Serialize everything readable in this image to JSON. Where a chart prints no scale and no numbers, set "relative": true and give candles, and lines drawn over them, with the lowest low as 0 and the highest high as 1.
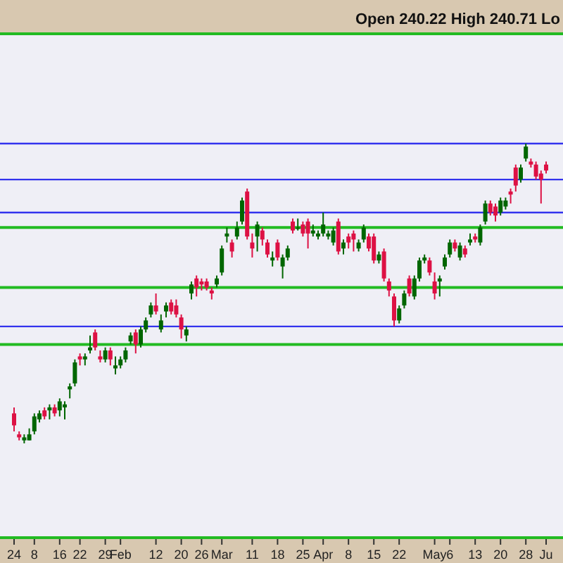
{
  "chart_data": {
    "type": "candlestick",
    "relative": true,
    "annotations": [
      "Open 240.22 High 240.71 Lo"
    ],
    "categories": [
      "24",
      null,
      null,
      null,
      "8",
      null,
      null,
      null,
      null,
      "16",
      null,
      null,
      null,
      "22",
      null,
      null,
      null,
      null,
      "29",
      null,
      null,
      "Feb",
      null,
      null,
      null,
      null,
      null,
      null,
      "12",
      null,
      null,
      null,
      null,
      "20",
      null,
      null,
      null,
      "26",
      null,
      null,
      null,
      "Mar",
      null,
      null,
      null,
      null,
      null,
      "11",
      null,
      null,
      null,
      null,
      "18",
      null,
      null,
      null,
      null,
      "25",
      null,
      null,
      null,
      "Apr",
      null,
      null,
      null,
      null,
      "8",
      null,
      null,
      null,
      null,
      "15",
      null,
      null,
      null,
      null,
      "22",
      null,
      null,
      null,
      null,
      null,
      null,
      "May",
      null,
      null,
      "6",
      null,
      null,
      null,
      null,
      "13",
      null,
      null,
      null,
      null,
      "20",
      null,
      null,
      null,
      null,
      "28",
      null,
      null,
      null,
      "Ju"
    ],
    "ohlc": [
      [
        0.1,
        0.12,
        0.04,
        0.06
      ],
      [
        0.03,
        0.04,
        0.01,
        0.02
      ],
      [
        0.01,
        0.03,
        0,
        0.02
      ],
      [
        0.01,
        0.05,
        0.01,
        0.03
      ],
      [
        0.04,
        0.1,
        0.03,
        0.09
      ],
      [
        0.08,
        0.11,
        0.07,
        0.1
      ],
      [
        0.11,
        0.12,
        0.08,
        0.09
      ],
      [
        0.11,
        0.13,
        0.08,
        0.12
      ],
      [
        0.12,
        0.13,
        0.09,
        0.1
      ],
      [
        0.11,
        0.15,
        0.09,
        0.14
      ],
      [
        0.12,
        0.14,
        0.08,
        0.13
      ],
      [
        0.18,
        0.2,
        0.15,
        0.19
      ],
      [
        0.2,
        0.28,
        0.19,
        0.27
      ],
      [
        0.29,
        0.3,
        0.26,
        0.28
      ],
      [
        0.28,
        0.3,
        0.26,
        0.29
      ],
      [
        0.31,
        0.36,
        0.3,
        0.32
      ],
      [
        0.37,
        0.38,
        0.31,
        0.32
      ],
      [
        0.29,
        0.31,
        0.27,
        0.28
      ],
      [
        0.28,
        0.32,
        0.27,
        0.31
      ],
      [
        0.31,
        0.32,
        0.26,
        0.28
      ],
      [
        0.25,
        0.29,
        0.23,
        0.26
      ],
      [
        0.26,
        0.29,
        0.25,
        0.28
      ],
      [
        0.28,
        0.32,
        0.27,
        0.31
      ],
      [
        0.34,
        0.37,
        0.33,
        0.36
      ],
      [
        0.37,
        0.38,
        0.3,
        0.33
      ],
      [
        0.33,
        0.39,
        0.32,
        0.38
      ],
      [
        0.38,
        0.42,
        0.37,
        0.41
      ],
      [
        0.43,
        0.47,
        0.42,
        0.46
      ],
      [
        0.46,
        0.5,
        0.43,
        0.44
      ],
      [
        0.38,
        0.43,
        0.37,
        0.41
      ],
      [
        0.44,
        0.47,
        0.42,
        0.46
      ],
      [
        0.47,
        0.48,
        0.43,
        0.44
      ],
      [
        0.46,
        0.48,
        0.42,
        0.43
      ],
      [
        0.42,
        0.43,
        0.35,
        0.38
      ],
      [
        0.36,
        0.39,
        0.34,
        0.38
      ],
      [
        0.5,
        0.54,
        0.48,
        0.53
      ],
      [
        0.55,
        0.56,
        0.49,
        0.52
      ],
      [
        0.54,
        0.55,
        0.51,
        0.53
      ],
      [
        0.54,
        0.55,
        0.51,
        0.52
      ],
      [
        0.51,
        0.52,
        0.48,
        0.5
      ],
      [
        0.53,
        0.56,
        0.52,
        0.55
      ],
      [
        0.57,
        0.66,
        0.56,
        0.65
      ],
      [
        0.69,
        0.72,
        0.67,
        0.7
      ],
      [
        0.67,
        0.68,
        0.62,
        0.64
      ],
      [
        0.69,
        0.74,
        0.68,
        0.72
      ],
      [
        0.74,
        0.82,
        0.73,
        0.81
      ],
      [
        0.84,
        0.85,
        0.68,
        0.69
      ],
      [
        0.67,
        0.7,
        0.62,
        0.65
      ],
      [
        0.69,
        0.74,
        0.64,
        0.73
      ],
      [
        0.71,
        0.72,
        0.66,
        0.68
      ],
      [
        0.67,
        0.68,
        0.62,
        0.63
      ],
      [
        0.61,
        0.64,
        0.59,
        0.62
      ],
      [
        0.67,
        0.68,
        0.61,
        0.62
      ],
      [
        0.59,
        0.63,
        0.55,
        0.62
      ],
      [
        0.62,
        0.66,
        0.61,
        0.65
      ],
      [
        0.74,
        0.75,
        0.7,
        0.71
      ],
      [
        0.72,
        0.75,
        0.71,
        0.72
      ],
      [
        0.73,
        0.74,
        0.69,
        0.7
      ],
      [
        0.74,
        0.75,
        0.65,
        0.7
      ],
      [
        0.7,
        0.73,
        0.69,
        0.71
      ],
      [
        0.69,
        0.71,
        0.68,
        0.7
      ],
      [
        0.7,
        0.77,
        0.69,
        0.73
      ],
      [
        0.69,
        0.71,
        0.68,
        0.7
      ],
      [
        0.67,
        0.72,
        0.66,
        0.71
      ],
      [
        0.74,
        0.75,
        0.63,
        0.64
      ],
      [
        0.65,
        0.68,
        0.63,
        0.67
      ],
      [
        0.69,
        0.7,
        0.65,
        0.67
      ],
      [
        0.7,
        0.71,
        0.64,
        0.68
      ],
      [
        0.65,
        0.68,
        0.64,
        0.67
      ],
      [
        0.68,
        0.73,
        0.67,
        0.72
      ],
      [
        0.69,
        0.7,
        0.64,
        0.65
      ],
      [
        0.69,
        0.7,
        0.6,
        0.61
      ],
      [
        0.61,
        0.64,
        0.6,
        0.63
      ],
      [
        0.64,
        0.65,
        0.54,
        0.55
      ],
      [
        0.54,
        0.55,
        0.49,
        0.51
      ],
      [
        0.49,
        0.5,
        0.39,
        0.41
      ],
      [
        0.41,
        0.46,
        0.4,
        0.45
      ],
      [
        0.46,
        0.51,
        0.45,
        0.5
      ],
      [
        0.55,
        0.56,
        0.49,
        0.5
      ],
      [
        0.49,
        0.56,
        0.48,
        0.55
      ],
      [
        0.55,
        0.62,
        0.54,
        0.61
      ],
      [
        0.61,
        0.63,
        0.6,
        0.62
      ],
      [
        0.61,
        0.62,
        0.56,
        0.57
      ],
      [
        0.54,
        0.57,
        0.48,
        0.5
      ],
      [
        0.54,
        0.56,
        0.49,
        0.55
      ],
      [
        0.59,
        0.63,
        0.58,
        0.62
      ],
      [
        0.63,
        0.68,
        0.62,
        0.67
      ],
      [
        0.67,
        0.68,
        0.64,
        0.65
      ],
      [
        0.62,
        0.67,
        0.61,
        0.66
      ],
      [
        0.65,
        0.66,
        0.62,
        0.63
      ],
      [
        0.67,
        0.7,
        0.66,
        0.68
      ],
      [
        0.69,
        0.7,
        0.67,
        0.68
      ],
      [
        0.67,
        0.73,
        0.66,
        0.72
      ],
      [
        0.74,
        0.81,
        0.73,
        0.8
      ],
      [
        0.8,
        0.81,
        0.76,
        0.77
      ],
      [
        0.79,
        0.8,
        0.74,
        0.76
      ],
      [
        0.77,
        0.82,
        0.76,
        0.81
      ],
      [
        0.79,
        0.82,
        0.78,
        0.81
      ],
      [
        0.84,
        0.85,
        0.8,
        0.83
      ],
      [
        0.92,
        0.93,
        0.84,
        0.86
      ],
      [
        0.88,
        0.93,
        0.87,
        0.92
      ],
      [
        0.95,
        1,
        0.94,
        0.99
      ],
      [
        0.94,
        0.95,
        0.92,
        0.93
      ],
      [
        0.93,
        0.94,
        0.88,
        0.89
      ],
      [
        0.9,
        0.91,
        0.8,
        0.88
      ],
      [
        0.93,
        0.94,
        0.9,
        0.91
      ]
    ],
    "ref_lines": [
      {
        "axis": "y",
        "value": 0.72,
        "color": "#22bb22"
      },
      {
        "axis": "y",
        "value": 0.52,
        "color": "#22bb22"
      },
      {
        "axis": "y",
        "value": 0.33,
        "color": "#22bb22"
      },
      {
        "axis": "y",
        "value": 1.0,
        "color": "#3333ee"
      },
      {
        "axis": "y",
        "value": 0.88,
        "color": "#3333ee"
      },
      {
        "axis": "y",
        "value": 0.77,
        "color": "#3333ee"
      },
      {
        "axis": "y",
        "value": 0.39,
        "color": "#3333ee"
      }
    ]
  }
}
